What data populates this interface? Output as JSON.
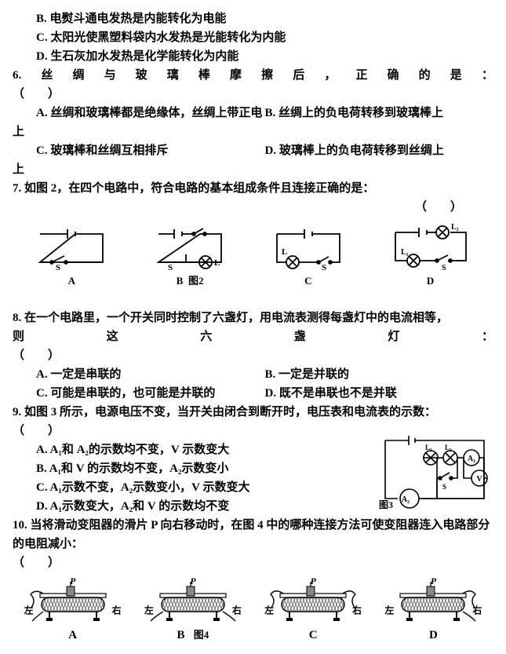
{
  "pre": {
    "b": "B. 电熨斗通电发热是内能转化为电能",
    "c": "C. 太阳光使黑塑料袋内水发热是光能转化为内能",
    "d": "D. 生石灰加水发热是化学能转化为内能"
  },
  "q6": {
    "stem_chars": [
      "6.",
      "丝",
      "绸",
      "与",
      "玻",
      "璃",
      "棒",
      "摩",
      "擦",
      "后",
      "，",
      "正",
      "确",
      "的",
      "是",
      "："
    ],
    "blank": "（　　）",
    "a": "A. 丝绸和玻璃棒都是绝缘体，丝绸上带正电",
    "b": "B. 丝绸上的负电荷转移到玻璃棒上",
    "c": "C. 玻璃棒和丝绸互相排斥",
    "d": "D. 玻璃棒上的负电荷转移到丝绸上"
  },
  "q7": {
    "stem": "7. 如图 2，在四个电路中，符合电路的基本组成条件且连接正确的是：",
    "blank": "（　　）",
    "labels": {
      "a": "A",
      "b": "B",
      "c": "C",
      "d": "D"
    },
    "figcap": "图2",
    "sym": {
      "s": "S",
      "L": "L",
      "L1": "L₁",
      "L2": "L₂"
    }
  },
  "q8": {
    "stem": "8. 在一个电路里，一个开关同时控制了六盏灯，用电流表测得每盏灯中的电流相等，",
    "line2_chars": [
      "则",
      "这",
      "六",
      "盏",
      "灯",
      "："
    ],
    "blank": "（　　）",
    "a": "A. 一定是串联的",
    "b": "B. 一定是并联的",
    "c": "C. 可能是串联的，也可能是并联的",
    "d": "D. 既不是串联也不是并联"
  },
  "q9": {
    "stem": "9. 如图 3 所示，电源电压不变，当开关由闭合到断开时，电压表和电流表的示数：",
    "blank": "（　　）",
    "a": "A. A₁和 A₂的示数均不变，V 示数变大",
    "b": "B. A₁和 V 的示数均不变，A₂示数变小",
    "c": "C. A₁示数不变，A₂示数变小，V 示数变大",
    "d": "D. A₁示数变大，A₂和 V 的示数均不变",
    "figcap": "图3",
    "sym": {
      "A1": "A₁",
      "A2": "A₂",
      "V": "V",
      "L1": "L₁",
      "L2": "L₂",
      "S": "S"
    }
  },
  "q10": {
    "stem": "10. 当将滑动变阻器的滑片 P 向右移动时，在图 4 中的哪种连接方法可使变阻器连入电路部分的电阻减小：",
    "blank": "（　　）",
    "labels": {
      "a": "A",
      "b": "B",
      "c": "C",
      "d": "D"
    },
    "figcap": "图4",
    "p": "P",
    "left": "左",
    "right": "右"
  },
  "colors": {
    "stroke": "#000000",
    "fill_hatch": "#777777"
  }
}
